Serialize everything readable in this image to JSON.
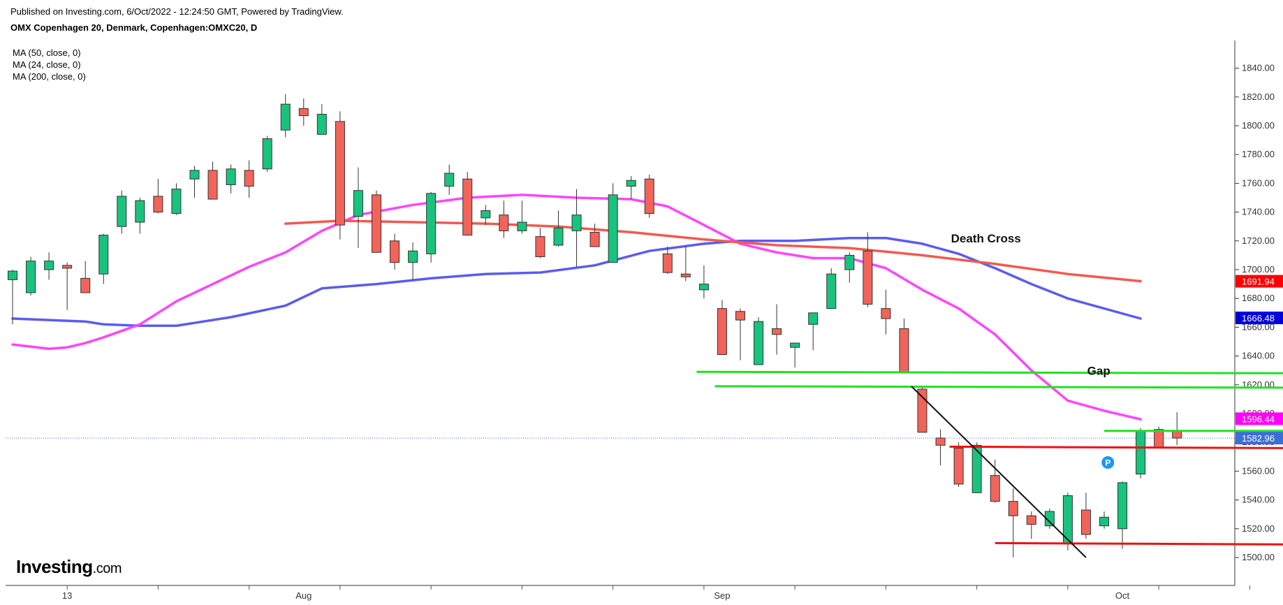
{
  "header": {
    "published": "Published on Investing.com, 6/Oct/2022 - 12:24:50 GMT, Powered by TradingView.",
    "instrument": "OMX Copenhagen 20, Denmark, Copenhagen:OMXC20, D"
  },
  "legend": [
    "MA (50, close, 0)",
    "MA (24, close, 0)",
    "MA (200, close, 0)"
  ],
  "logo": {
    "main": "Investing",
    "suffix": ".com"
  },
  "chart_data": {
    "type": "candlestick",
    "y_ticks": [
      1500,
      1520,
      1540,
      1560,
      1580,
      1600,
      1620,
      1640,
      1660,
      1680,
      1700,
      1720,
      1740,
      1760,
      1780,
      1800,
      1820,
      1840
    ],
    "x_labels": [
      {
        "label": "13",
        "at": 3
      },
      {
        "label": "Aug",
        "at": 16
      },
      {
        "label": "Sep",
        "at": 39
      },
      {
        "label": "Oct",
        "at": 61
      }
    ],
    "candles": [
      {
        "o": 1693,
        "h": 1700,
        "l": 1662,
        "c": 1699
      },
      {
        "o": 1684,
        "h": 1709,
        "l": 1682,
        "c": 1706
      },
      {
        "o": 1700,
        "h": 1712,
        "l": 1693,
        "c": 1706
      },
      {
        "o": 1703,
        "h": 1705,
        "l": 1672,
        "c": 1701
      },
      {
        "o": 1694,
        "h": 1706,
        "l": 1684,
        "c": 1684
      },
      {
        "o": 1697,
        "h": 1725,
        "l": 1690,
        "c": 1724
      },
      {
        "o": 1730,
        "h": 1755,
        "l": 1725,
        "c": 1751
      },
      {
        "o": 1733,
        "h": 1750,
        "l": 1725,
        "c": 1748
      },
      {
        "o": 1751,
        "h": 1763,
        "l": 1739,
        "c": 1740
      },
      {
        "o": 1739,
        "h": 1760,
        "l": 1738,
        "c": 1756
      },
      {
        "o": 1763,
        "h": 1772,
        "l": 1750,
        "c": 1769
      },
      {
        "o": 1769,
        "h": 1775,
        "l": 1749,
        "c": 1749
      },
      {
        "o": 1759,
        "h": 1773,
        "l": 1753,
        "c": 1770
      },
      {
        "o": 1769,
        "h": 1776,
        "l": 1750,
        "c": 1758
      },
      {
        "o": 1770,
        "h": 1793,
        "l": 1768,
        "c": 1791
      },
      {
        "o": 1797,
        "h": 1822,
        "l": 1792,
        "c": 1815
      },
      {
        "o": 1812,
        "h": 1819,
        "l": 1800,
        "c": 1807
      },
      {
        "o": 1794,
        "h": 1815,
        "l": 1794,
        "c": 1808
      },
      {
        "o": 1803,
        "h": 1810,
        "l": 1721,
        "c": 1731
      },
      {
        "o": 1737,
        "h": 1771,
        "l": 1715,
        "c": 1755
      },
      {
        "o": 1752,
        "h": 1755,
        "l": 1712,
        "c": 1712
      },
      {
        "o": 1720,
        "h": 1725,
        "l": 1700,
        "c": 1705
      },
      {
        "o": 1705,
        "h": 1719,
        "l": 1693,
        "c": 1713
      },
      {
        "o": 1711,
        "h": 1754,
        "l": 1705,
        "c": 1753
      },
      {
        "o": 1758,
        "h": 1773,
        "l": 1752,
        "c": 1767
      },
      {
        "o": 1763,
        "h": 1768,
        "l": 1724,
        "c": 1724
      },
      {
        "o": 1736,
        "h": 1745,
        "l": 1731,
        "c": 1741
      },
      {
        "o": 1738,
        "h": 1748,
        "l": 1722,
        "c": 1727
      },
      {
        "o": 1727,
        "h": 1748,
        "l": 1725,
        "c": 1733
      },
      {
        "o": 1723,
        "h": 1729,
        "l": 1708,
        "c": 1709
      },
      {
        "o": 1717,
        "h": 1741,
        "l": 1716,
        "c": 1729
      },
      {
        "o": 1727,
        "h": 1756,
        "l": 1702,
        "c": 1738
      },
      {
        "o": 1726,
        "h": 1732,
        "l": 1716,
        "c": 1716
      },
      {
        "o": 1705,
        "h": 1760,
        "l": 1705,
        "c": 1752
      },
      {
        "o": 1758,
        "h": 1765,
        "l": 1749,
        "c": 1762
      },
      {
        "o": 1763,
        "h": 1766,
        "l": 1736,
        "c": 1739
      },
      {
        "o": 1711,
        "h": 1716,
        "l": 1697,
        "c": 1698
      },
      {
        "o": 1697,
        "h": 1716,
        "l": 1692,
        "c": 1695
      },
      {
        "o": 1686,
        "h": 1703,
        "l": 1680,
        "c": 1690
      },
      {
        "o": 1673,
        "h": 1679,
        "l": 1642,
        "c": 1641
      },
      {
        "o": 1671,
        "h": 1673,
        "l": 1637,
        "c": 1665
      },
      {
        "o": 1634,
        "h": 1667,
        "l": 1634,
        "c": 1664
      },
      {
        "o": 1659,
        "h": 1676,
        "l": 1641,
        "c": 1655
      },
      {
        "o": 1646,
        "h": 1649,
        "l": 1632,
        "c": 1649
      },
      {
        "o": 1662,
        "h": 1670,
        "l": 1644,
        "c": 1670
      },
      {
        "o": 1673,
        "h": 1701,
        "l": 1673,
        "c": 1697
      },
      {
        "o": 1700,
        "h": 1712,
        "l": 1691,
        "c": 1710
      },
      {
        "o": 1713,
        "h": 1726,
        "l": 1674,
        "c": 1676
      },
      {
        "o": 1673,
        "h": 1686,
        "l": 1655,
        "c": 1666
      },
      {
        "o": 1659,
        "h": 1666,
        "l": 1628,
        "c": 1629
      },
      {
        "o": 1617,
        "h": 1619,
        "l": 1587,
        "c": 1587
      },
      {
        "o": 1583,
        "h": 1589,
        "l": 1564,
        "c": 1578
      },
      {
        "o": 1576,
        "h": 1580,
        "l": 1549,
        "c": 1551
      },
      {
        "o": 1545,
        "h": 1580,
        "l": 1545,
        "c": 1578
      },
      {
        "o": 1557,
        "h": 1568,
        "l": 1538,
        "c": 1539
      },
      {
        "o": 1539,
        "h": 1548,
        "l": 1500,
        "c": 1529
      },
      {
        "o": 1529,
        "h": 1532,
        "l": 1513,
        "c": 1523
      },
      {
        "o": 1522,
        "h": 1534,
        "l": 1520,
        "c": 1532
      },
      {
        "o": 1510,
        "h": 1545,
        "l": 1505,
        "c": 1543
      },
      {
        "o": 1533,
        "h": 1545,
        "l": 1513,
        "c": 1516
      },
      {
        "o": 1522,
        "h": 1532,
        "l": 1520,
        "c": 1528
      },
      {
        "o": 1520,
        "h": 1553,
        "l": 1506,
        "c": 1552
      },
      {
        "o": 1558,
        "h": 1590,
        "l": 1555,
        "c": 1588
      },
      {
        "o": 1589,
        "h": 1591,
        "l": 1576,
        "c": 1576
      },
      {
        "o": 1588,
        "h": 1601,
        "l": 1578,
        "c": 1583
      }
    ],
    "series": [
      {
        "name": "MA (50, close, 0)",
        "color": "#5b5bf0",
        "points": [
          [
            0,
            1666
          ],
          [
            2,
            1665
          ],
          [
            4,
            1664
          ],
          [
            5,
            1662
          ],
          [
            7,
            1661
          ],
          [
            9,
            1661
          ],
          [
            10,
            1663
          ],
          [
            12,
            1667
          ],
          [
            15,
            1675
          ],
          [
            17,
            1687
          ],
          [
            20,
            1690
          ],
          [
            23,
            1694
          ],
          [
            26,
            1697
          ],
          [
            29,
            1698
          ],
          [
            32,
            1703
          ],
          [
            35,
            1713
          ],
          [
            38,
            1718
          ],
          [
            40,
            1720
          ],
          [
            43,
            1720
          ],
          [
            46,
            1722
          ],
          [
            48,
            1722
          ],
          [
            50,
            1718
          ],
          [
            52,
            1711
          ],
          [
            54,
            1701
          ],
          [
            56,
            1690
          ],
          [
            58,
            1680
          ],
          [
            62,
            1666
          ]
        ]
      },
      {
        "name": "MA (24, close, 0)",
        "color": "#ff44ff",
        "points": [
          [
            0,
            1648
          ],
          [
            2,
            1645
          ],
          [
            3,
            1646
          ],
          [
            4,
            1649
          ],
          [
            5,
            1653
          ],
          [
            7,
            1662
          ],
          [
            9,
            1678
          ],
          [
            11,
            1690
          ],
          [
            13,
            1702
          ],
          [
            15,
            1712
          ],
          [
            17,
            1727
          ],
          [
            19,
            1738
          ],
          [
            22,
            1745
          ],
          [
            25,
            1750
          ],
          [
            28,
            1752
          ],
          [
            31,
            1750
          ],
          [
            34,
            1749
          ],
          [
            36,
            1744
          ],
          [
            38,
            1731
          ],
          [
            40,
            1718
          ],
          [
            42,
            1712
          ],
          [
            44,
            1708
          ],
          [
            46,
            1708
          ],
          [
            48,
            1701
          ],
          [
            50,
            1686
          ],
          [
            52,
            1673
          ],
          [
            54,
            1655
          ],
          [
            56,
            1630
          ],
          [
            58,
            1609
          ],
          [
            60,
            1602
          ],
          [
            62,
            1596
          ]
        ]
      },
      {
        "name": "MA (200, close, 0)",
        "color": "#f05a50",
        "points": [
          [
            15,
            1732
          ],
          [
            18,
            1734
          ],
          [
            22,
            1733
          ],
          [
            26,
            1732
          ],
          [
            30,
            1730
          ],
          [
            34,
            1726
          ],
          [
            38,
            1721
          ],
          [
            42,
            1717
          ],
          [
            46,
            1715
          ],
          [
            50,
            1710
          ],
          [
            54,
            1704
          ],
          [
            58,
            1697
          ],
          [
            62,
            1692
          ]
        ]
      }
    ],
    "price_labels": [
      {
        "value": 1691.94,
        "text": "1691.94",
        "color": "#ff0000"
      },
      {
        "value": 1666.48,
        "text": "1666.48",
        "color": "#0000d8"
      },
      {
        "value": 1596.44,
        "text": "1596.44",
        "color": "#ff00ff"
      },
      {
        "value": 1582.96,
        "text": "1582.96",
        "color": "#3b6fd6"
      }
    ],
    "annotations": [
      {
        "text": "Death Cross",
        "x": 53.5,
        "y": 1719
      },
      {
        "text": "Gap",
        "x": 59.7,
        "y": 1627
      }
    ]
  }
}
